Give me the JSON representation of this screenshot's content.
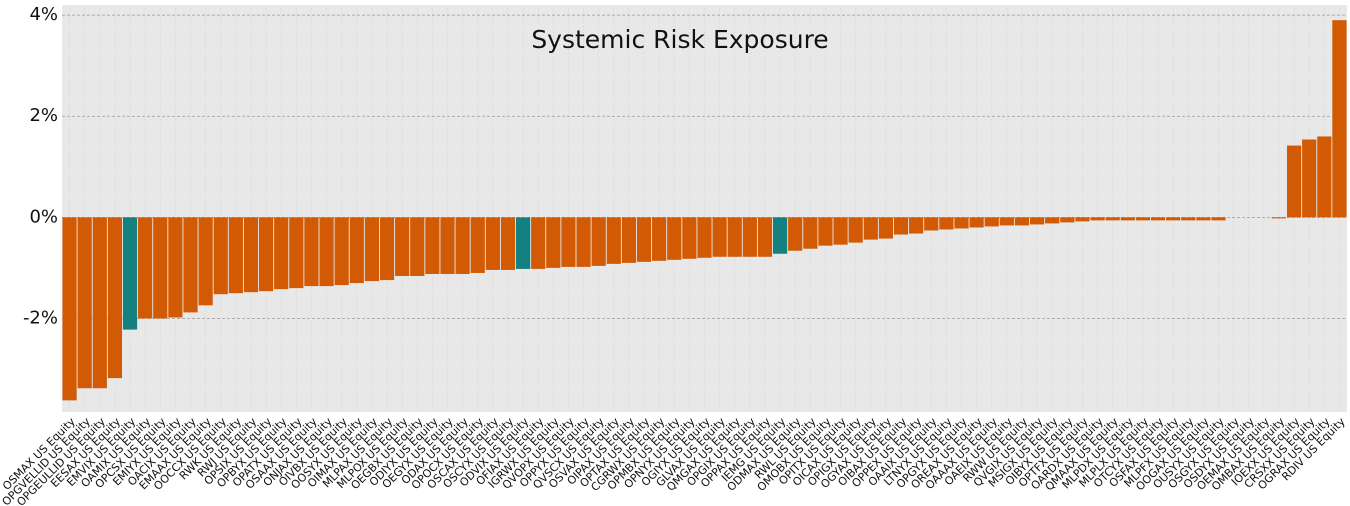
{
  "chart_data": {
    "type": "bar",
    "title": "Systemic Risk Exposure",
    "categories": [
      "OSMAX US Equity",
      "OPGVELLID US Equity",
      "OPGEULLID US Equity",
      "EESAX US Equity",
      "EMVIX US Equity",
      "OAMIX US Equity",
      "OPCSX US Equity",
      "EMIYX US Equity",
      "OACIX US Equity",
      "EMAAX US Equity",
      "OOCCX US Equity",
      "RWK US Equity",
      "RWJ US Equity",
      "OPSIX US Equity",
      "OPBYX US Equity",
      "OPATX US Equity",
      "OSAAX US Equity",
      "ONJAX US Equity",
      "OIVBX US Equity",
      "OOSYX US Equity",
      "OIMAX US Equity",
      "MLPAX US Equity",
      "MLPOX US Equity",
      "OEGBX US Equity",
      "ODIYX US Equity",
      "OEGYX US Equity",
      "ODAX US Equity",
      "OPOCX US Equity",
      "OSCAX US Equity",
      "OSCYX US Equity",
      "ODVIX US Equity",
      "OFIAX US Equity",
      "IGRWX US Equity",
      "QVOPX US Equity",
      "OPPYX US Equity",
      "QVSCX US Equity",
      "OSVAX US Equity",
      "OIPAX US Equity",
      "OPTAX US Equity",
      "CGRWX US Equity",
      "OPMBX US Equity",
      "OPNYX US Equity",
      "OGIYX US Equity",
      "GLVAX US Equity",
      "QMGAX US Equity",
      "OPGIX US Equity",
      "OPPAX US Equity",
      "IEMG US Equity",
      "ODMAX US Equity",
      "RWL US Equity",
      "OMOBX US Equity",
      "OPITX US Equity",
      "OICAX US Equity",
      "OPIGX US Equity",
      "OGYAX US Equity",
      "OIBAX US Equity",
      "OPPEX US Equity",
      "OAAIX US Equity",
      "LTNYX US Equity",
      "OPGYX US Equity",
      "OREAX US Equity",
      "OAAAX US Equity",
      "OAEIX US Equity",
      "RWW US Equity",
      "QVGIX US Equity",
      "MSIGX US Equity",
      "OIBYX US Equity",
      "OPTFX US Equity",
      "OARDX US Equity",
      "QMAAX US Equity",
      "MLPDX US Equity",
      "MLPLX US Equity",
      "OTCYX US Equity",
      "OSFAX US Equity",
      "MLPFX US Equity",
      "OOGAX US Equity",
      "OUSYX US Equity",
      "OSGYX US Equity",
      "OSDYX US Equity",
      "OEMAX US Equity",
      "OMBAX US Equity",
      "IOEXX US Equity",
      "CRSXX US Equity",
      "OGRAX US Equity",
      "RDIV US Equity"
    ],
    "values": [
      -3.62,
      -3.38,
      -3.38,
      -3.18,
      -2.22,
      -2.0,
      -2.0,
      -1.98,
      -1.88,
      -1.74,
      -1.52,
      -1.5,
      -1.48,
      -1.46,
      -1.42,
      -1.4,
      -1.36,
      -1.36,
      -1.34,
      -1.3,
      -1.26,
      -1.24,
      -1.16,
      -1.16,
      -1.12,
      -1.12,
      -1.12,
      -1.1,
      -1.04,
      -1.04,
      -1.02,
      -1.02,
      -1.0,
      -0.98,
      -0.98,
      -0.96,
      -0.92,
      -0.9,
      -0.88,
      -0.86,
      -0.84,
      -0.82,
      -0.8,
      -0.78,
      -0.78,
      -0.78,
      -0.78,
      -0.72,
      -0.66,
      -0.62,
      -0.56,
      -0.54,
      -0.5,
      -0.44,
      -0.42,
      -0.34,
      -0.32,
      -0.26,
      -0.24,
      -0.22,
      -0.2,
      -0.18,
      -0.16,
      -0.16,
      -0.14,
      -0.12,
      -0.1,
      -0.08,
      -0.06,
      -0.06,
      -0.06,
      -0.06,
      -0.06,
      -0.06,
      -0.06,
      -0.06,
      -0.06,
      0,
      0,
      0,
      -0.02,
      1.42,
      1.54,
      1.6,
      3.9
    ],
    "colors": [
      "#d25a04",
      "#d25a04",
      "#d25a04",
      "#d25a04",
      "#14807f",
      "#d25a04",
      "#d25a04",
      "#d25a04",
      "#d25a04",
      "#d25a04",
      "#d25a04",
      "#d25a04",
      "#d25a04",
      "#d25a04",
      "#d25a04",
      "#d25a04",
      "#d25a04",
      "#d25a04",
      "#d25a04",
      "#d25a04",
      "#d25a04",
      "#d25a04",
      "#d25a04",
      "#d25a04",
      "#d25a04",
      "#d25a04",
      "#d25a04",
      "#d25a04",
      "#d25a04",
      "#d25a04",
      "#14807f",
      "#d25a04",
      "#d25a04",
      "#d25a04",
      "#d25a04",
      "#d25a04",
      "#d25a04",
      "#d25a04",
      "#d25a04",
      "#d25a04",
      "#d25a04",
      "#d25a04",
      "#d25a04",
      "#d25a04",
      "#d25a04",
      "#d25a04",
      "#d25a04",
      "#14807f",
      "#d25a04",
      "#d25a04",
      "#d25a04",
      "#d25a04",
      "#d25a04",
      "#d25a04",
      "#d25a04",
      "#d25a04",
      "#d25a04",
      "#d25a04",
      "#d25a04",
      "#d25a04",
      "#d25a04",
      "#d25a04",
      "#d25a04",
      "#d25a04",
      "#d25a04",
      "#d25a04",
      "#d25a04",
      "#d25a04",
      "#d25a04",
      "#d25a04",
      "#d25a04",
      "#d25a04",
      "#d25a04",
      "#d25a04",
      "#d25a04",
      "#d25a04",
      "#d25a04",
      "#d25a04",
      "#d25a04",
      "#d25a04",
      "#d25a04",
      "#d25a04",
      "#d25a04",
      "#d25a04",
      "#d25a04"
    ],
    "ylim": [
      -3.85,
      4.2
    ],
    "yticks": [
      {
        "value": -2,
        "label": "-2%"
      },
      {
        "value": 0,
        "label": "0%"
      },
      {
        "value": 2,
        "label": "2%"
      },
      {
        "value": 4,
        "label": "4%"
      }
    ],
    "grid": true
  }
}
